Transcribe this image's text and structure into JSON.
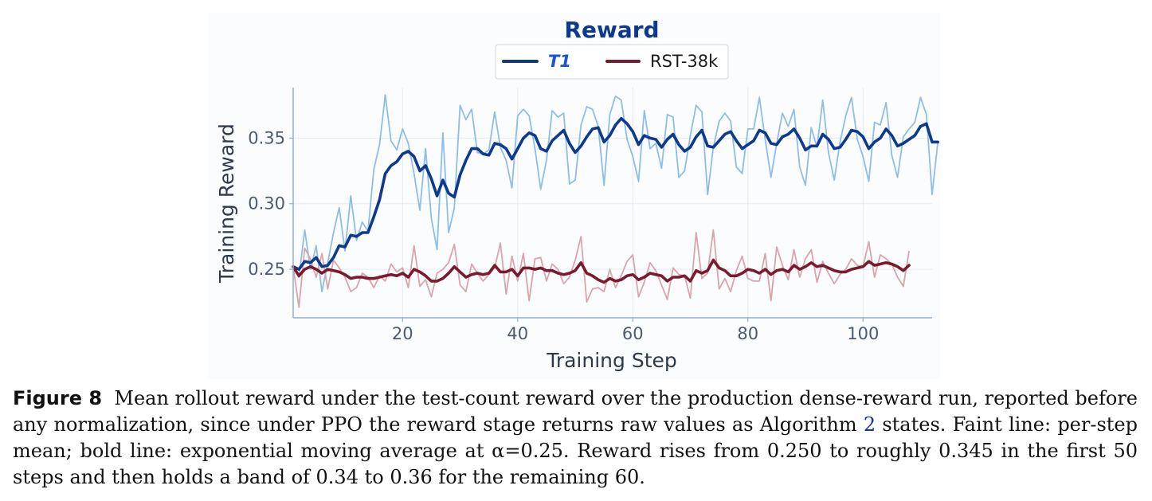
{
  "chart_data": {
    "type": "line",
    "title": "Reward",
    "xlabel": "Training Step",
    "ylabel": "Training Reward",
    "xlim": [
      1,
      112
    ],
    "ylim": [
      0.213,
      0.3885
    ],
    "xticks": [
      20,
      40,
      60,
      80,
      100
    ],
    "xtick_labels": [
      "20",
      "40",
      "60",
      "80",
      "100"
    ],
    "yticks": [
      0.25,
      0.3,
      0.35
    ],
    "ytick_labels": [
      "0.25",
      "0.30",
      "0.35"
    ],
    "grid": true,
    "legend_position": "top-center",
    "series": [
      {
        "name": "T1",
        "color": "#0d3a8c",
        "raw_color": "#8fbdea",
        "x_start": 1,
        "raw": [
          0.252,
          0.244,
          0.28,
          0.25,
          0.268,
          0.233,
          0.255,
          0.278,
          0.297,
          0.264,
          0.306,
          0.272,
          0.286,
          0.279,
          0.326,
          0.345,
          0.383,
          0.348,
          0.341,
          0.357,
          0.346,
          0.323,
          0.295,
          0.342,
          0.289,
          0.265,
          0.354,
          0.278,
          0.297,
          0.375,
          0.364,
          0.372,
          0.339,
          0.338,
          0.341,
          0.37,
          0.343,
          0.333,
          0.312,
          0.367,
          0.372,
          0.367,
          0.342,
          0.311,
          0.333,
          0.371,
          0.366,
          0.369,
          0.315,
          0.318,
          0.36,
          0.374,
          0.372,
          0.359,
          0.314,
          0.368,
          0.382,
          0.379,
          0.349,
          0.336,
          0.317,
          0.371,
          0.342,
          0.346,
          0.327,
          0.368,
          0.366,
          0.32,
          0.325,
          0.352,
          0.375,
          0.37,
          0.307,
          0.343,
          0.363,
          0.369,
          0.363,
          0.328,
          0.323,
          0.357,
          0.357,
          0.381,
          0.349,
          0.32,
          0.346,
          0.369,
          0.359,
          0.372,
          0.328,
          0.314,
          0.358,
          0.343,
          0.379,
          0.339,
          0.318,
          0.347,
          0.367,
          0.381,
          0.349,
          0.336,
          0.317,
          0.362,
          0.36,
          0.377,
          0.337,
          0.32,
          0.351,
          0.357,
          0.362,
          0.381,
          0.368,
          0.307,
          0.347
        ],
        "ema": [
          0.252,
          0.25,
          0.256,
          0.255,
          0.259,
          0.252,
          0.253,
          0.259,
          0.268,
          0.267,
          0.276,
          0.275,
          0.278,
          0.278,
          0.29,
          0.303,
          0.323,
          0.329,
          0.332,
          0.338,
          0.34,
          0.336,
          0.325,
          0.329,
          0.319,
          0.306,
          0.318,
          0.308,
          0.305,
          0.322,
          0.333,
          0.342,
          0.342,
          0.338,
          0.337,
          0.346,
          0.345,
          0.342,
          0.334,
          0.342,
          0.35,
          0.354,
          0.352,
          0.342,
          0.34,
          0.348,
          0.352,
          0.356,
          0.346,
          0.339,
          0.344,
          0.351,
          0.357,
          0.358,
          0.347,
          0.352,
          0.36,
          0.365,
          0.361,
          0.355,
          0.345,
          0.352,
          0.35,
          0.349,
          0.343,
          0.349,
          0.353,
          0.345,
          0.34,
          0.343,
          0.351,
          0.356,
          0.344,
          0.343,
          0.348,
          0.353,
          0.355,
          0.348,
          0.342,
          0.345,
          0.348,
          0.356,
          0.354,
          0.346,
          0.345,
          0.351,
          0.353,
          0.357,
          0.35,
          0.341,
          0.344,
          0.344,
          0.353,
          0.349,
          0.342,
          0.343,
          0.349,
          0.356,
          0.355,
          0.351,
          0.342,
          0.347,
          0.35,
          0.357,
          0.352,
          0.344,
          0.346,
          0.349,
          0.352,
          0.359,
          0.361,
          0.347,
          0.347
        ]
      },
      {
        "name": "RST-38k",
        "color": "#7a1a2e",
        "raw_color": "#d9a4ab",
        "x_start": 1,
        "raw": [
          0.252,
          0.221,
          0.266,
          0.258,
          0.244,
          0.262,
          0.235,
          0.257,
          0.251,
          0.244,
          0.233,
          0.236,
          0.247,
          0.244,
          0.236,
          0.245,
          0.241,
          0.254,
          0.248,
          0.251,
          0.236,
          0.268,
          0.237,
          0.242,
          0.229,
          0.247,
          0.25,
          0.255,
          0.269,
          0.238,
          0.233,
          0.254,
          0.247,
          0.241,
          0.246,
          0.251,
          0.27,
          0.231,
          0.26,
          0.241,
          0.262,
          0.226,
          0.258,
          0.259,
          0.241,
          0.254,
          0.25,
          0.239,
          0.244,
          0.257,
          0.275,
          0.225,
          0.235,
          0.236,
          0.233,
          0.25,
          0.236,
          0.245,
          0.256,
          0.261,
          0.229,
          0.24,
          0.255,
          0.249,
          0.238,
          0.227,
          0.251,
          0.246,
          0.245,
          0.228,
          0.278,
          0.243,
          0.247,
          0.28,
          0.235,
          0.243,
          0.233,
          0.249,
          0.26,
          0.243,
          0.241,
          0.241,
          0.262,
          0.226,
          0.267,
          0.253,
          0.242,
          0.265,
          0.244,
          0.258,
          0.265,
          0.24,
          0.256,
          0.247,
          0.239,
          0.246,
          0.25,
          0.258,
          0.253,
          0.252,
          0.271,
          0.244,
          0.261,
          0.258,
          0.254,
          0.244,
          0.237,
          0.264
        ],
        "ema": [
          0.252,
          0.245,
          0.25,
          0.252,
          0.25,
          0.247,
          0.25,
          0.249,
          0.248,
          0.246,
          0.243,
          0.244,
          0.244,
          0.243,
          0.243,
          0.244,
          0.245,
          0.246,
          0.245,
          0.247,
          0.244,
          0.25,
          0.248,
          0.245,
          0.241,
          0.241,
          0.243,
          0.247,
          0.252,
          0.248,
          0.244,
          0.246,
          0.247,
          0.246,
          0.247,
          0.253,
          0.248,
          0.248,
          0.25,
          0.245,
          0.251,
          0.251,
          0.25,
          0.251,
          0.249,
          0.249,
          0.247,
          0.246,
          0.247,
          0.249,
          0.255,
          0.247,
          0.245,
          0.242,
          0.24,
          0.243,
          0.241,
          0.242,
          0.245,
          0.246,
          0.242,
          0.244,
          0.247,
          0.246,
          0.245,
          0.241,
          0.244,
          0.244,
          0.245,
          0.241,
          0.249,
          0.247,
          0.249,
          0.257,
          0.251,
          0.249,
          0.245,
          0.245,
          0.247,
          0.25,
          0.249,
          0.247,
          0.25,
          0.246,
          0.249,
          0.25,
          0.248,
          0.253,
          0.25,
          0.252,
          0.255,
          0.252,
          0.253,
          0.251,
          0.249,
          0.248,
          0.248,
          0.25,
          0.251,
          0.252,
          0.256,
          0.253,
          0.254,
          0.255,
          0.254,
          0.252,
          0.249,
          0.253
        ]
      }
    ]
  },
  "caption": {
    "label": "Figure 8",
    "text_before_ref": "Mean rollout reward under the test-count reward over the production dense-reward run, reported before any normalization, since under PPO the reward stage returns raw values as Algorithm ",
    "ref": "2",
    "text_after_ref": " states. Faint line: per-step mean; bold line: exponential moving average at α=0.25. Reward rises from 0.250 to roughly 0.345 in the first 50 steps and then holds a band of 0.34 to 0.36 for the remaining 60."
  }
}
